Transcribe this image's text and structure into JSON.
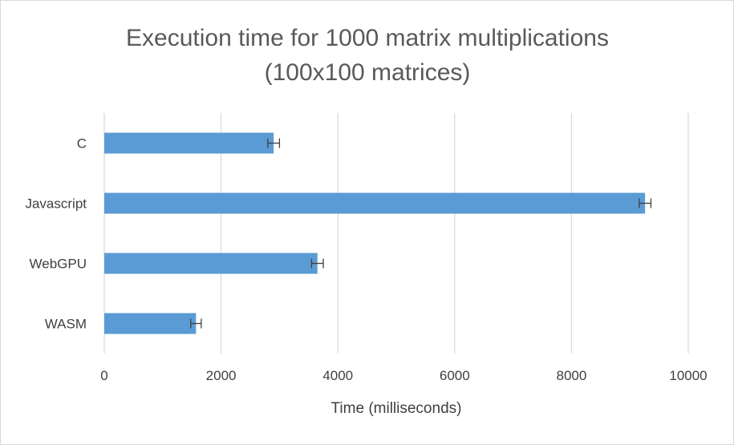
{
  "chart_data": {
    "type": "bar",
    "orientation": "horizontal",
    "title": [
      "Execution time for 1000 matrix multiplications",
      "(100x100 matrices)"
    ],
    "xlabel": "Time (milliseconds)",
    "ylabel": "",
    "categories": [
      "C",
      "Javascript",
      "WebGPU",
      "WASM"
    ],
    "values": [
      2900,
      9260,
      3650,
      1570
    ],
    "error": [
      100,
      100,
      100,
      90
    ],
    "xlim": [
      0,
      10000
    ],
    "xticks": [
      0,
      2000,
      4000,
      6000,
      8000,
      10000
    ],
    "grid": "vertical",
    "legend": "none",
    "bar_color": "#5b9bd5",
    "error_color": "#404040",
    "grid_color": "#d9d9d9"
  }
}
